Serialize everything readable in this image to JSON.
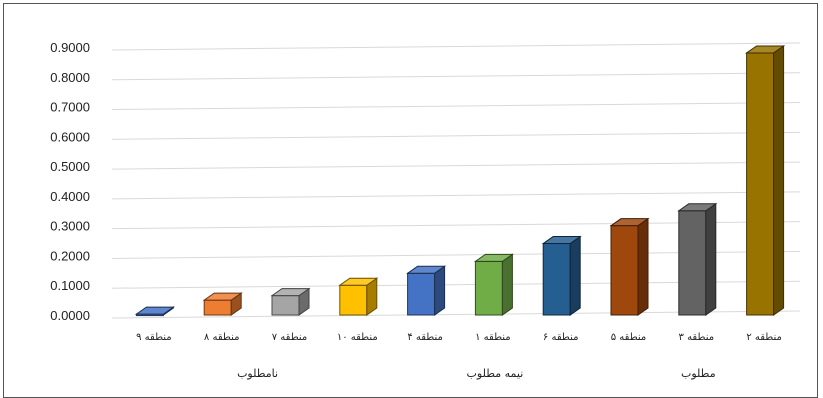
{
  "chart_data": {
    "type": "bar",
    "title": "",
    "xlabel": "",
    "ylabel": "",
    "ylim": [
      0,
      0.9
    ],
    "yticks": [
      "0.0000",
      "0.1000",
      "0.2000",
      "0.3000",
      "0.4000",
      "0.5000",
      "0.6000",
      "0.7000",
      "0.8000",
      "0.9000"
    ],
    "grid": true,
    "legend": "none",
    "categories": [
      "منطقه ۹",
      "منطقه ۸",
      "منطقه ۷",
      "منطقه ۱۰",
      "منطقه ۴",
      "منطقه ۱",
      "منطقه ۶",
      "منطقه ۵",
      "منطقه ۳",
      "منطقه ۲"
    ],
    "values": [
      0.003,
      0.05,
      0.065,
      0.1,
      0.14,
      0.18,
      0.24,
      0.3,
      0.35,
      0.88
    ],
    "colors": [
      "#4472c4",
      "#ed7d31",
      "#a5a5a5",
      "#ffc000",
      "#4472c4",
      "#70ad47",
      "#255e91",
      "#9e480e",
      "#636363",
      "#997300"
    ],
    "groups": [
      {
        "label": "نامطلوب",
        "categories": [
          "منطقه ۹",
          "منطقه ۸",
          "منطقه ۷",
          "منطقه ۱۰"
        ]
      },
      {
        "label": "نیمه مطلوب",
        "categories": [
          "منطقه ۴",
          "منطقه ۱",
          "منطقه ۶"
        ]
      },
      {
        "label": "مطلوب",
        "categories": [
          "منطقه ۵",
          "منطقه ۳",
          "منطقه ۲"
        ]
      }
    ]
  }
}
